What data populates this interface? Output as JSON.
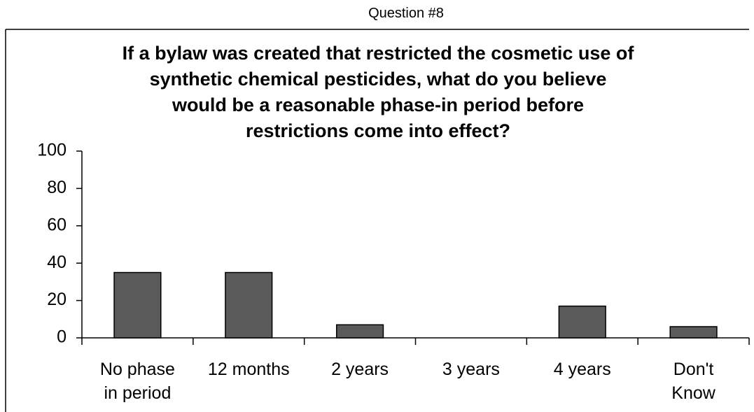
{
  "header": "Question #8",
  "chart_data": {
    "type": "bar",
    "title": "If a bylaw was created that restricted the cosmetic use of\nsynthetic chemical pesticides, what do you believe\nwould be a reasonable phase-in period before\nrestrictions come into effect?",
    "categories": [
      "No phase\nin period",
      "12 months",
      "2 years",
      "3 years",
      "4 years",
      "Don't\nKnow"
    ],
    "values": [
      35,
      35,
      7,
      0,
      17,
      6
    ],
    "color": "#5a5a5a",
    "ylim": [
      0,
      100
    ],
    "yticks": [
      0,
      20,
      40,
      60,
      80,
      100
    ],
    "grid": false
  }
}
